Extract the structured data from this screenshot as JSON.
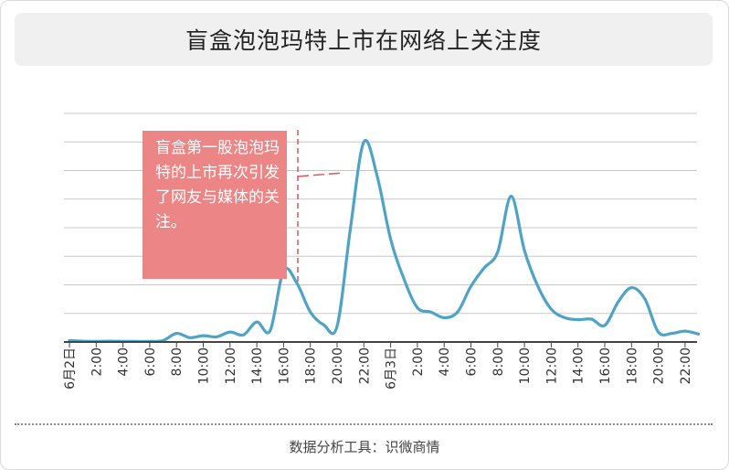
{
  "title": "盲盒泡泡玛特上市在网络上关注度",
  "annotation": "盲盒第一股泡泡玛特的上市再次引发了网友与媒体的关注。",
  "source": "数据分析工具：识微商情",
  "colors": {
    "line": "#4fa3c4",
    "annotation_bg": "#ec8585",
    "annotation_line": "#d9565c",
    "grid": "#c8c8c8",
    "axis": "#444444"
  },
  "chart_data": {
    "type": "line",
    "title": "盲盒泡泡玛特上市在网络上关注度",
    "xlabel": "",
    "ylabel": "",
    "grid": true,
    "legend": "none",
    "y_range": [
      0,
      8
    ],
    "x_tick_labels": [
      "6月2日",
      "2:00",
      "4:00",
      "6:00",
      "8:00",
      "10:00",
      "12:00",
      "14:00",
      "16:00",
      "18:00",
      "20:00",
      "22:00",
      "6月3日",
      "2:00",
      "4:00",
      "6:00",
      "8:00",
      "10:00",
      "12:00",
      "14:00",
      "16:00",
      "18:00",
      "20:00",
      "22:00"
    ],
    "series": [
      {
        "x": [
          0,
          1,
          2,
          3,
          4,
          5,
          6,
          7,
          8,
          9,
          10,
          11,
          12,
          13,
          14,
          15,
          16,
          17,
          18,
          19,
          20,
          21,
          22,
          23,
          24,
          25,
          26,
          27,
          28,
          29,
          30,
          31,
          32,
          33,
          34,
          35,
          36,
          37,
          38,
          39,
          40,
          41,
          42,
          43,
          44,
          45,
          46,
          47
        ],
        "values": [
          0.05,
          0.03,
          0.02,
          0.03,
          0.02,
          0.02,
          0.02,
          0.05,
          0.3,
          0.15,
          0.22,
          0.18,
          0.35,
          0.25,
          0.7,
          0.4,
          2.5,
          2.05,
          1.05,
          0.6,
          0.55,
          4.0,
          7.0,
          5.8,
          3.6,
          2.2,
          1.2,
          1.05,
          0.85,
          1.05,
          1.95,
          2.6,
          3.15,
          5.1,
          3.2,
          1.95,
          1.15,
          0.85,
          0.78,
          0.8,
          0.58,
          1.4,
          1.9,
          1.5,
          0.35,
          0.3,
          0.38,
          0.28
        ]
      }
    ]
  }
}
